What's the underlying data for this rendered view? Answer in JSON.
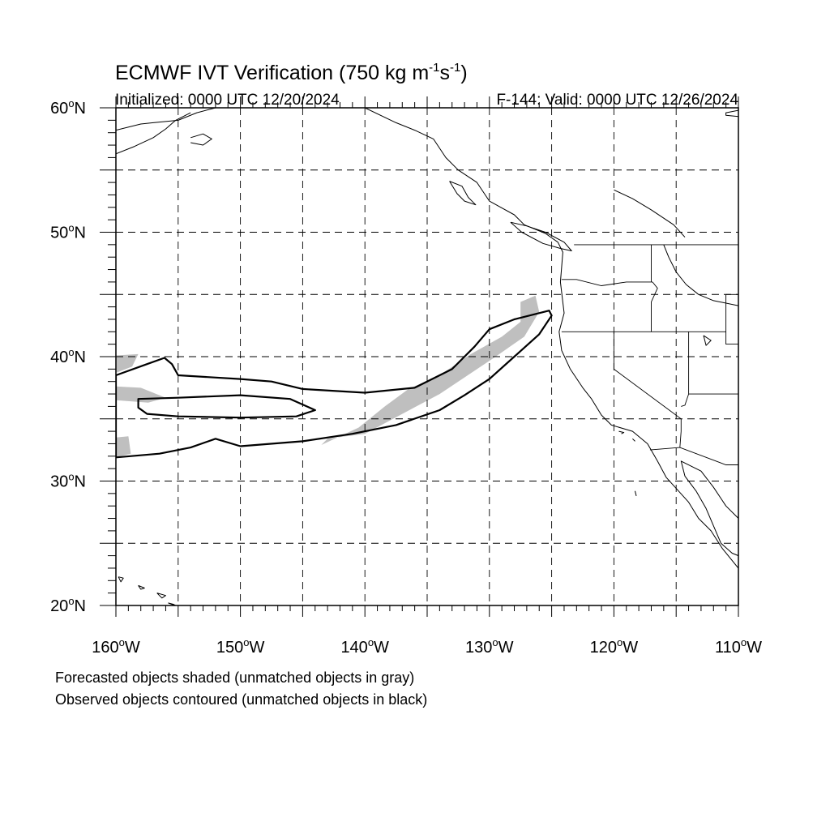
{
  "map": {
    "title_main": "ECMWF IVT Verification (750 kg m",
    "title_sup1": "-1",
    "title_mid": "s",
    "title_sup2": "-1",
    "title_end": ")",
    "initialized": "Initialized: 0000 UTC 12/20/2024",
    "valid": "F-144: Valid: 0000 UTC 12/26/2024",
    "lat_labels": [
      {
        "deg": "20",
        "hemi": "N"
      },
      {
        "deg": "30",
        "hemi": "N"
      },
      {
        "deg": "40",
        "hemi": "N"
      },
      {
        "deg": "50",
        "hemi": "N"
      },
      {
        "deg": "60",
        "hemi": "N"
      }
    ],
    "lon_labels": [
      {
        "deg": "160",
        "hemi": "W"
      },
      {
        "deg": "150",
        "hemi": "W"
      },
      {
        "deg": "140",
        "hemi": "W"
      },
      {
        "deg": "130",
        "hemi": "W"
      },
      {
        "deg": "120",
        "hemi": "W"
      },
      {
        "deg": "110",
        "hemi": "W"
      }
    ],
    "extent": {
      "lon_min": -160,
      "lon_max": -110,
      "lat_min": 20,
      "lat_max": 60
    },
    "grid": "dashed every 5 degrees",
    "colors": {
      "forecast_fill": "#bfbfbf",
      "observed_contour": "#000000",
      "coast": "#000000"
    }
  },
  "legend": {
    "line1": "Forecasted objects shaded (unmatched objects in gray)",
    "line2": "Observed objects contoured (unmatched objects in black)"
  },
  "objects": {
    "forecast": [
      {
        "lonlat": [
          [
            -127.5,
            44.4
          ],
          [
            -126.3,
            44.9
          ],
          [
            -126.0,
            43.6
          ],
          [
            -127.2,
            41.6
          ],
          [
            -129.5,
            40.0
          ],
          [
            -134.0,
            37.0
          ],
          [
            -140.0,
            33.8
          ],
          [
            -143.0,
            33.4
          ],
          [
            -143.5,
            32.9
          ],
          [
            -140.5,
            34.3
          ],
          [
            -138.4,
            36.0
          ],
          [
            -136.5,
            37.4
          ],
          [
            -134.0,
            38.5
          ],
          [
            -131.5,
            40.2
          ],
          [
            -129.0,
            41.6
          ],
          [
            -127.5,
            42.8
          ]
        ]
      },
      {
        "lonlat": [
          [
            -160.0,
            40.1
          ],
          [
            -158.2,
            40.2
          ],
          [
            -158.7,
            39.2
          ],
          [
            -160.0,
            38.7
          ]
        ]
      },
      {
        "lonlat": [
          [
            -160.0,
            37.6
          ],
          [
            -158.0,
            37.5
          ],
          [
            -156.0,
            36.7
          ],
          [
            -157.4,
            36.3
          ],
          [
            -160.0,
            36.5
          ]
        ]
      },
      {
        "lonlat": [
          [
            -160.0,
            33.5
          ],
          [
            -159.0,
            33.6
          ],
          [
            -158.8,
            32.2
          ],
          [
            -160.0,
            31.9
          ]
        ]
      }
    ],
    "observed": [
      {
        "lonlat": [
          [
            -160.0,
            38.5
          ],
          [
            -157.5,
            39.4
          ],
          [
            -156.1,
            39.9
          ],
          [
            -155.5,
            39.4
          ],
          [
            -155.0,
            38.5
          ],
          [
            -150.0,
            38.2
          ],
          [
            -147.5,
            38.0
          ],
          [
            -145.0,
            37.4
          ],
          [
            -140.0,
            37.1
          ],
          [
            -136.0,
            37.5
          ],
          [
            -133.0,
            39.0
          ],
          [
            -131.2,
            40.8
          ],
          [
            -130.0,
            42.2
          ],
          [
            -128.0,
            43.0
          ],
          [
            -125.2,
            43.7
          ],
          [
            -125.0,
            43.3
          ],
          [
            -126.0,
            41.8
          ],
          [
            -128.0,
            40.0
          ],
          [
            -130.0,
            38.2
          ],
          [
            -132.0,
            36.9
          ],
          [
            -134.0,
            35.7
          ],
          [
            -137.5,
            34.5
          ],
          [
            -141.0,
            33.8
          ],
          [
            -145.0,
            33.2
          ],
          [
            -150.0,
            32.8
          ],
          [
            -152.0,
            33.4
          ],
          [
            -154.0,
            32.7
          ],
          [
            -156.5,
            32.2
          ],
          [
            -160.0,
            31.9
          ]
        ]
      },
      {
        "lonlat": [
          [
            -158.2,
            36.6
          ],
          [
            -155.0,
            36.7
          ],
          [
            -150.0,
            36.9
          ],
          [
            -146.0,
            36.6
          ],
          [
            -144.0,
            35.7
          ],
          [
            -145.5,
            35.2
          ],
          [
            -150.0,
            35.1
          ],
          [
            -155.0,
            35.2
          ],
          [
            -157.5,
            35.4
          ],
          [
            -158.2,
            35.9
          ]
        ]
      }
    ]
  },
  "geography": {
    "coastlines": [
      {
        "lonlat": [
          [
            -160.0,
            58.2
          ],
          [
            -158.0,
            58.7
          ],
          [
            -157.0,
            58.8
          ],
          [
            -155.0,
            59.0
          ],
          [
            -153.5,
            59.6
          ],
          [
            -152.0,
            60.0
          ]
        ]
      },
      {
        "lonlat": [
          [
            -160.0,
            56.3
          ],
          [
            -158.5,
            56.9
          ],
          [
            -157.0,
            57.6
          ],
          [
            -156.0,
            58.3
          ],
          [
            -155.2,
            59.0
          ],
          [
            -154.0,
            59.6
          ]
        ]
      },
      {
        "lonlat": [
          [
            -154.0,
            57.6
          ],
          [
            -153.0,
            57.9
          ],
          [
            -152.3,
            57.5
          ],
          [
            -153.0,
            57.0
          ],
          [
            -154.0,
            57.2
          ]
        ]
      },
      {
        "lonlat": [
          [
            -140.0,
            60.0
          ],
          [
            -137.5,
            58.8
          ],
          [
            -136.0,
            58.2
          ],
          [
            -134.5,
            57.5
          ],
          [
            -133.5,
            56.0
          ],
          [
            -132.5,
            55.0
          ],
          [
            -131.0,
            54.0
          ],
          [
            -130.0,
            52.5
          ],
          [
            -128.0,
            51.4
          ],
          [
            -127.2,
            50.6
          ],
          [
            -125.5,
            49.9
          ],
          [
            -124.5,
            49.2
          ],
          [
            -124.1,
            48.4
          ],
          [
            -124.3,
            46.0
          ],
          [
            -124.0,
            43.5
          ],
          [
            -124.4,
            42.0
          ],
          [
            -124.2,
            40.5
          ],
          [
            -123.5,
            39.0
          ],
          [
            -122.5,
            37.5
          ],
          [
            -121.8,
            36.6
          ],
          [
            -121.0,
            35.3
          ],
          [
            -120.2,
            34.5
          ],
          [
            -118.5,
            34.0
          ],
          [
            -117.3,
            33.0
          ],
          [
            -116.5,
            31.6
          ],
          [
            -115.8,
            30.3
          ],
          [
            -114.9,
            29.3
          ],
          [
            -114.0,
            28.3
          ],
          [
            -113.2,
            27.0
          ],
          [
            -112.2,
            26.0
          ],
          [
            -111.3,
            24.6
          ],
          [
            -110.0,
            23.0
          ]
        ]
      },
      {
        "lonlat": [
          [
            -110.0,
            27.0
          ],
          [
            -111.0,
            28.0
          ],
          [
            -112.0,
            29.5
          ],
          [
            -113.0,
            30.8
          ],
          [
            -114.6,
            31.6
          ],
          [
            -114.3,
            30.4
          ],
          [
            -113.4,
            29.2
          ],
          [
            -112.6,
            27.8
          ],
          [
            -112.0,
            26.4
          ],
          [
            -111.4,
            25.0
          ],
          [
            -110.5,
            24.2
          ],
          [
            -110.0,
            24.0
          ]
        ]
      },
      {
        "lonlat": [
          [
            -133.2,
            54.1
          ],
          [
            -132.2,
            53.7
          ],
          [
            -131.7,
            52.8
          ],
          [
            -131.1,
            52.2
          ],
          [
            -132.0,
            52.5
          ],
          [
            -132.6,
            53.1
          ],
          [
            -133.2,
            54.1
          ]
        ]
      },
      {
        "lonlat": [
          [
            -128.3,
            50.8
          ],
          [
            -127.0,
            50.5
          ],
          [
            -125.5,
            50.0
          ],
          [
            -124.0,
            49.2
          ],
          [
            -123.4,
            48.5
          ],
          [
            -124.3,
            48.7
          ],
          [
            -125.7,
            49.1
          ],
          [
            -127.4,
            50.0
          ],
          [
            -128.3,
            50.8
          ]
        ]
      },
      {
        "lonlat": [
          [
            -110.0,
            59.8
          ],
          [
            -111.0,
            59.6
          ],
          [
            -111.0,
            59.4
          ],
          [
            -110.0,
            59.3
          ]
        ]
      },
      {
        "lonlat": [
          [
            -120.0,
            53.4
          ],
          [
            -118.5,
            52.7
          ],
          [
            -117.0,
            51.8
          ],
          [
            -115.2,
            50.6
          ],
          [
            -114.3,
            49.6
          ]
        ]
      },
      {
        "lonlat": [
          [
            -116.0,
            49.0
          ],
          [
            -115.6,
            48.0
          ],
          [
            -115.0,
            46.8
          ],
          [
            -114.2,
            45.8
          ],
          [
            -113.2,
            45.0
          ],
          [
            -112.0,
            44.5
          ],
          [
            -110.0,
            44.1
          ]
        ]
      },
      {
        "lonlat": [
          [
            -159.8,
            22.3
          ],
          [
            -159.4,
            22.2
          ],
          [
            -159.6,
            21.9
          ],
          [
            -159.8,
            22.3
          ]
        ]
      },
      {
        "lonlat": [
          [
            -158.2,
            21.6
          ],
          [
            -157.7,
            21.4
          ],
          [
            -158.0,
            21.3
          ],
          [
            -158.2,
            21.6
          ]
        ]
      },
      {
        "lonlat": [
          [
            -156.7,
            21.0
          ],
          [
            -156.0,
            20.8
          ],
          [
            -156.3,
            20.6
          ],
          [
            -156.7,
            21.0
          ]
        ]
      },
      {
        "lonlat": [
          [
            -155.8,
            20.2
          ],
          [
            -155.0,
            19.9
          ],
          [
            -155.4,
            20.1
          ],
          [
            -155.8,
            20.2
          ]
        ]
      },
      {
        "lonlat": [
          [
            -112.8,
            41.7
          ],
          [
            -112.2,
            41.3
          ],
          [
            -112.6,
            40.9
          ],
          [
            -112.8,
            41.7
          ]
        ]
      },
      {
        "lonlat": [
          [
            -119.6,
            34.0
          ],
          [
            -119.2,
            33.9
          ],
          [
            -119.4,
            33.8
          ]
        ]
      },
      {
        "lonlat": [
          [
            -118.5,
            33.4
          ],
          [
            -118.3,
            33.2
          ]
        ]
      },
      {
        "lonlat": [
          [
            -118.3,
            29.2
          ],
          [
            -118.2,
            28.8
          ]
        ]
      }
    ],
    "borders": [
      {
        "lonlat": [
          [
            -123.2,
            49.0
          ],
          [
            -110.0,
            49.0
          ]
        ]
      },
      {
        "lonlat": [
          [
            -124.2,
            46.2
          ],
          [
            -123.0,
            46.2
          ],
          [
            -121.0,
            45.7
          ],
          [
            -119.0,
            46.0
          ],
          [
            -116.9,
            46.0
          ]
        ]
      },
      {
        "lonlat": [
          [
            -117.0,
            49.0
          ],
          [
            -117.0,
            46.0
          ]
        ]
      },
      {
        "lonlat": [
          [
            -124.2,
            42.0
          ],
          [
            -111.0,
            42.0
          ]
        ]
      },
      {
        "lonlat": [
          [
            -120.0,
            42.0
          ],
          [
            -120.0,
            39.0
          ],
          [
            -114.6,
            35.0
          ],
          [
            -114.6,
            34.0
          ],
          [
            -114.7,
            32.7
          ]
        ]
      },
      {
        "lonlat": [
          [
            -116.9,
            46.0
          ],
          [
            -116.5,
            45.5
          ],
          [
            -117.0,
            44.4
          ],
          [
            -117.0,
            42.0
          ]
        ]
      },
      {
        "lonlat": [
          [
            -114.0,
            42.0
          ],
          [
            -114.0,
            37.0
          ],
          [
            -114.3,
            36.1
          ],
          [
            -114.6,
            36.0
          ]
        ]
      },
      {
        "lonlat": [
          [
            -114.0,
            37.0
          ],
          [
            -110.0,
            37.0
          ]
        ]
      },
      {
        "lonlat": [
          [
            -111.0,
            45.0
          ],
          [
            -110.0,
            45.0
          ]
        ]
      },
      {
        "lonlat": [
          [
            -111.0,
            45.0
          ],
          [
            -111.0,
            41.0
          ],
          [
            -110.0,
            41.0
          ]
        ]
      },
      {
        "lonlat": [
          [
            -117.1,
            32.5
          ],
          [
            -114.7,
            32.7
          ],
          [
            -111.0,
            31.3
          ],
          [
            -110.0,
            31.3
          ]
        ]
      }
    ]
  }
}
